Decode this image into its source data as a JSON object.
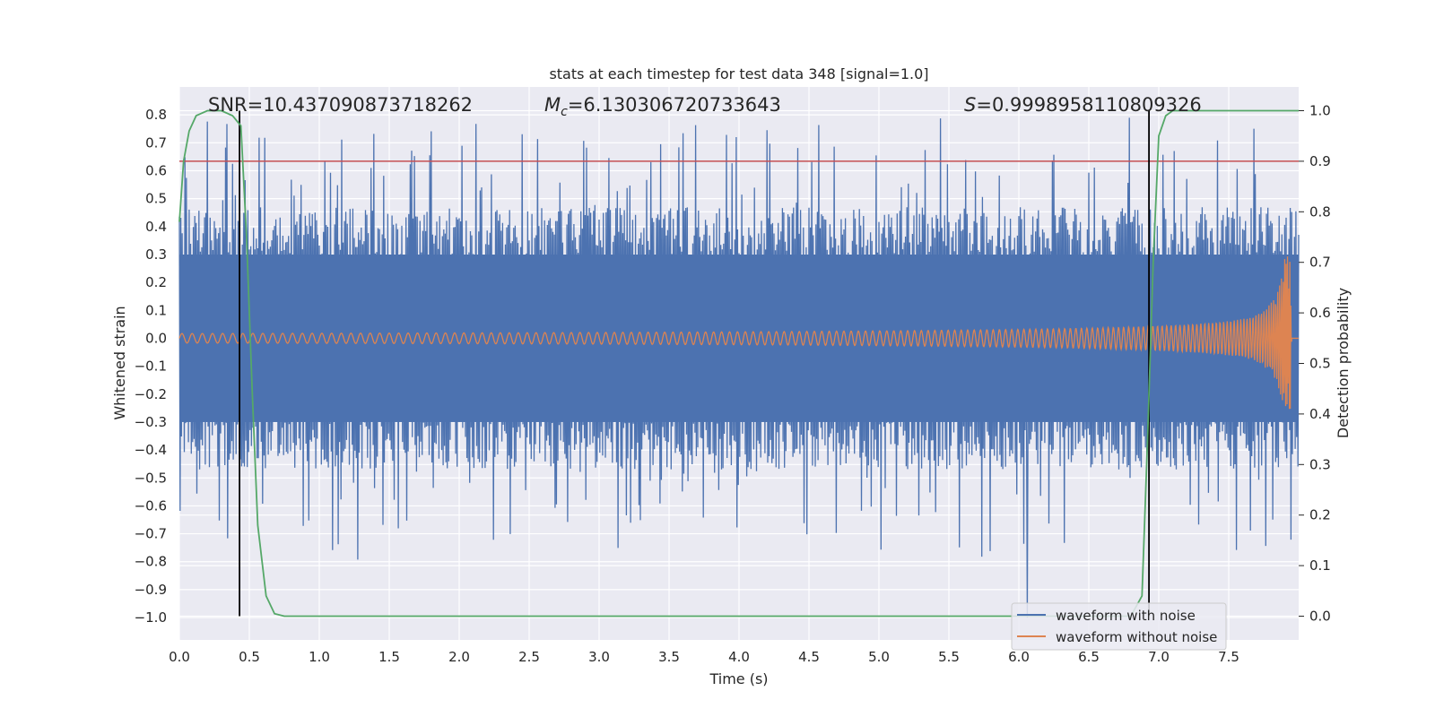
{
  "chart_data": {
    "type": "line",
    "title": "stats at each timestep for test data 348 [signal=1.0]",
    "xlabel": "Time (s)",
    "ylabel": "Whitened strain",
    "y2label": "Detection probability",
    "xlim": [
      0.0,
      8.0
    ],
    "ylim": [
      -1.08,
      0.9
    ],
    "y2lim": [
      -0.047,
      1.047
    ],
    "xticks": [
      0.0,
      0.5,
      1.0,
      1.5,
      2.0,
      2.5,
      3.0,
      3.5,
      4.0,
      4.5,
      5.0,
      5.5,
      6.0,
      6.5,
      7.0,
      7.5
    ],
    "xtick_labels": [
      "0.0",
      "0.5",
      "1.0",
      "1.5",
      "2.0",
      "2.5",
      "3.0",
      "3.5",
      "4.0",
      "4.5",
      "5.0",
      "5.5",
      "6.0",
      "6.5",
      "7.0",
      "7.5"
    ],
    "yticks": [
      0.8,
      0.7,
      0.6,
      0.5,
      0.4,
      0.3,
      0.2,
      0.1,
      0.0,
      -0.1,
      -0.2,
      -0.3,
      -0.4,
      -0.5,
      -0.6,
      -0.7,
      -0.8,
      -0.9,
      -1.0
    ],
    "ytick_labels": [
      "0.8",
      "0.7",
      "0.6",
      "0.5",
      "0.4",
      "0.3",
      "0.2",
      "0.1",
      "0.0",
      "−0.1",
      "−0.2",
      "−0.3",
      "−0.4",
      "−0.5",
      "−0.6",
      "−0.7",
      "−0.8",
      "−0.9",
      "−1.0"
    ],
    "y2ticks": [
      1.0,
      0.9,
      0.8,
      0.7,
      0.6,
      0.5,
      0.4,
      0.3,
      0.2,
      0.1,
      0.0
    ],
    "y2tick_labels": [
      "1.0",
      "0.9",
      "0.8",
      "0.7",
      "0.6",
      "0.5",
      "0.4",
      "0.3",
      "0.2",
      "0.1",
      "0.0"
    ],
    "annotations": {
      "snr": "SNR=10.437090873718262",
      "mc_symbol": "M",
      "mc_sub": "c",
      "mc_value": "=6.130306720733643",
      "s_symbol": "S",
      "s_value": "=0.9998958110809326"
    },
    "series": [
      {
        "name": "waveform with noise",
        "color": "#4c72b0",
        "kind": "noise",
        "envelope": [
          -0.3,
          0.3
        ],
        "peak_range": [
          -1.0,
          0.8
        ]
      },
      {
        "name": "waveform without noise",
        "color": "#dd8452",
        "kind": "chirp",
        "merger_time": 7.95,
        "peak_amplitude": 0.3
      }
    ],
    "detection_probability": {
      "color": "#55a868",
      "x": [
        0.0,
        0.03,
        0.07,
        0.12,
        0.2,
        0.3,
        0.38,
        0.44,
        0.48,
        0.52,
        0.56,
        0.62,
        0.68,
        0.75,
        1.0,
        2.0,
        3.0,
        4.0,
        5.0,
        6.0,
        6.8,
        6.88,
        6.92,
        6.96,
        7.0,
        7.05,
        7.1,
        7.5,
        8.0
      ],
      "y": [
        0.78,
        0.9,
        0.96,
        0.99,
        1.0,
        1.0,
        0.99,
        0.97,
        0.75,
        0.45,
        0.18,
        0.04,
        0.005,
        0.0,
        0.0,
        0.0,
        0.0,
        0.0,
        0.0,
        0.0,
        0.0,
        0.04,
        0.35,
        0.7,
        0.95,
        0.99,
        1.0,
        1.0,
        1.0
      ]
    },
    "threshold": {
      "value": 0.9,
      "axis": "right",
      "color": "#c44e52"
    },
    "vertical_markers": {
      "times": [
        0.43,
        6.93
      ],
      "color": "#000000"
    },
    "legend": {
      "position": "bottom-right",
      "entries": [
        "waveform with noise",
        "waveform without noise"
      ]
    },
    "grid": true,
    "background": "#eaeaf2"
  }
}
